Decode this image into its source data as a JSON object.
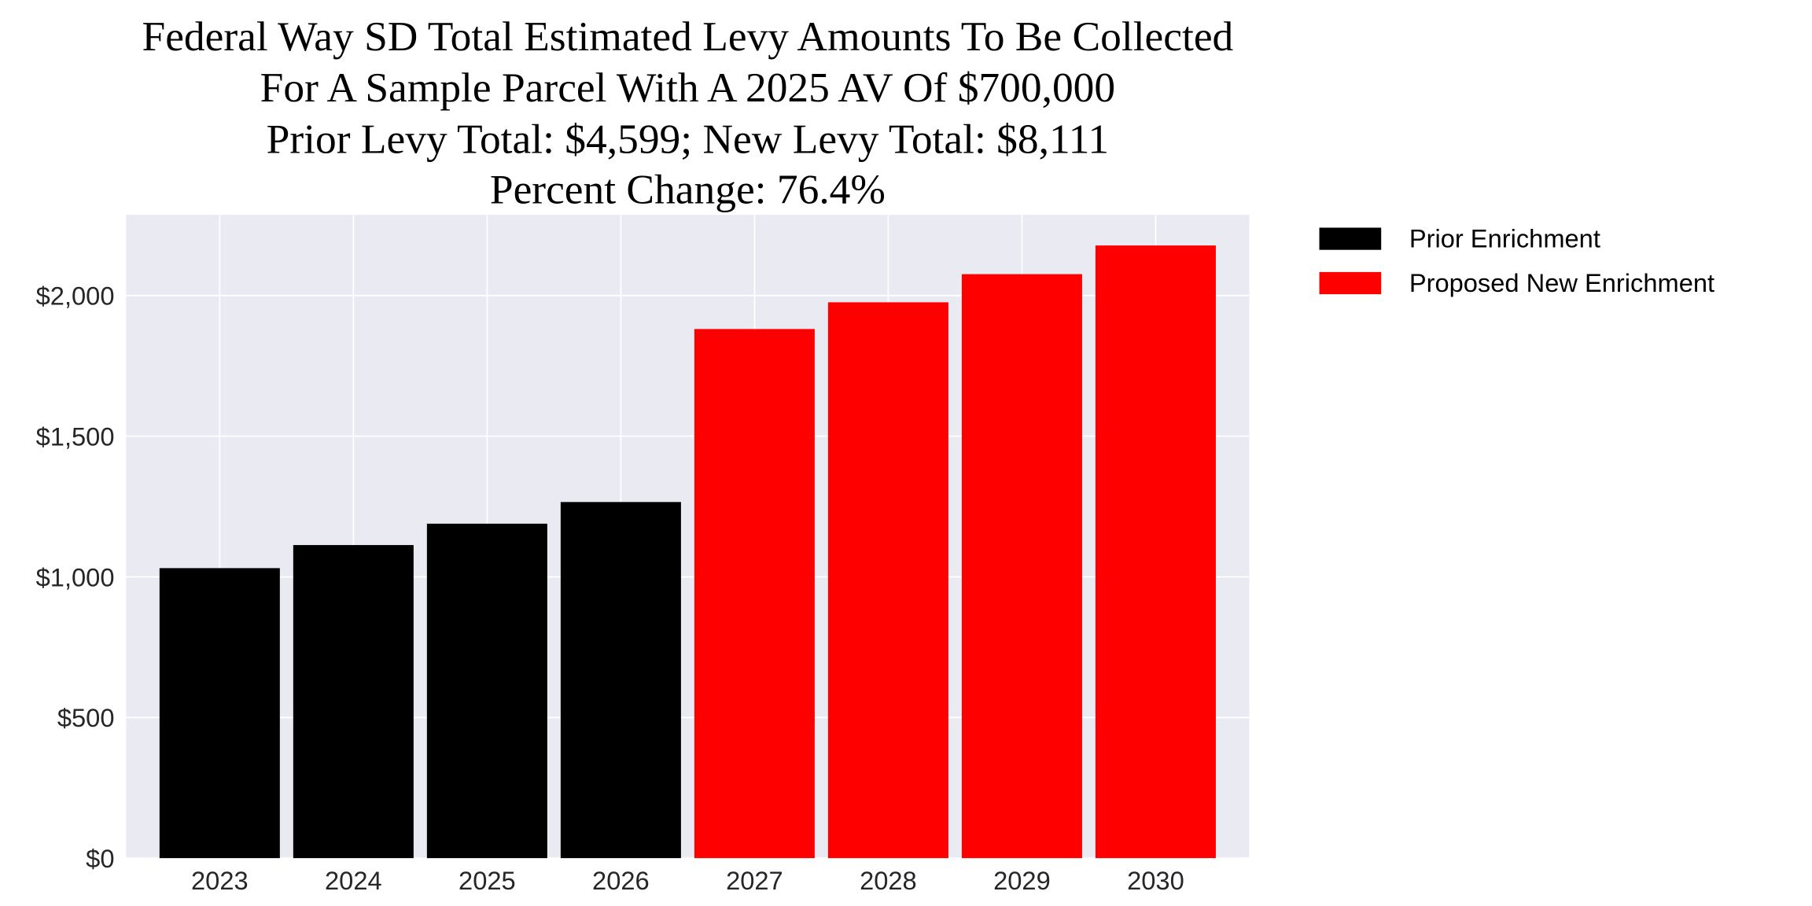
{
  "chart_data": {
    "type": "bar",
    "title_lines": [
      "Federal Way SD Total Estimated Levy Amounts To Be Collected",
      "For A Sample Parcel With A 2025 AV Of $700,000",
      "Prior Levy Total:  $4,599; New Levy Total: $8,111",
      "Percent Change: 76.4%"
    ],
    "categories": [
      "2023",
      "2024",
      "2025",
      "2026",
      "2027",
      "2028",
      "2029",
      "2030"
    ],
    "values": [
      1031,
      1113,
      1189,
      1266,
      1881,
      1976,
      2076,
      2178
    ],
    "bar_series": [
      "Prior Enrichment",
      "Prior Enrichment",
      "Prior Enrichment",
      "Prior Enrichment",
      "Proposed New Enrichment",
      "Proposed New Enrichment",
      "Proposed New Enrichment",
      "Proposed New Enrichment"
    ],
    "series": [
      {
        "name": "Prior Enrichment",
        "color": "#000000"
      },
      {
        "name": "Proposed New Enrichment",
        "color": "#FF0000"
      }
    ],
    "yticks": [
      0,
      500,
      1000,
      1500,
      2000
    ],
    "ytick_labels": [
      "$0",
      "$500",
      "$1,000",
      "$1,500",
      "$2,000"
    ],
    "ylim": [
      0,
      2287
    ],
    "xlabel": "",
    "ylabel": "",
    "grid": true,
    "background": "#EAEAF2",
    "legend_placement": "outside-top-right"
  }
}
